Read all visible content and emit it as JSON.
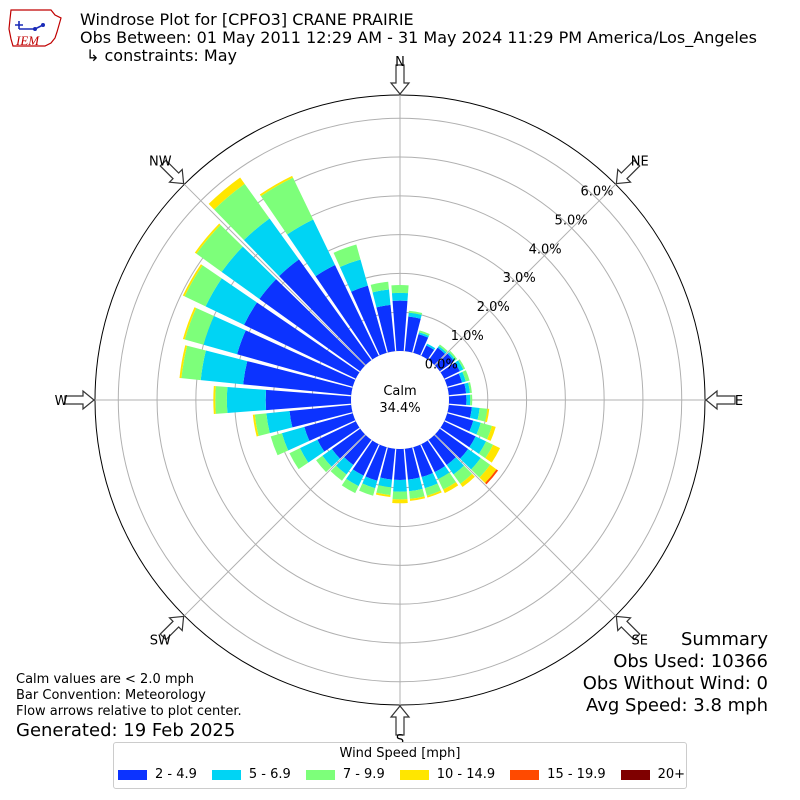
{
  "header": {
    "logo_text": "IEM",
    "title": "Windrose Plot for [CPFO3] CRANE PRAIRIE",
    "period": "Obs Between: 01 May 2011 12:29 AM - 31 May 2024 11:29 PM America/Los_Angeles",
    "constraints": "↳ constraints: May"
  },
  "notes": {
    "line1": "Calm values are < 2.0 mph",
    "line2": "Bar Convention: Meteorology",
    "line3": "Flow arrows relative to plot center.",
    "generated": "Generated: 19 Feb 2025"
  },
  "summary": {
    "title": "Summary",
    "obs_used": "Obs Used: 10366",
    "obs_without_wind": "Obs Without Wind: 0",
    "avg_speed": "Avg Speed: 3.8 mph"
  },
  "legend": {
    "title": "Wind Speed [mph]",
    "items": [
      {
        "label": "2 - 4.9",
        "color": "#0c33ff"
      },
      {
        "label": "5 - 6.9",
        "color": "#00d4f4"
      },
      {
        "label": "7 - 9.9",
        "color": "#7dff7a"
      },
      {
        "label": "10 - 14.9",
        "color": "#ffe600"
      },
      {
        "label": "15 - 19.9",
        "color": "#ff4a00"
      },
      {
        "label": "20+",
        "color": "#7f0000"
      }
    ]
  },
  "chart_data": {
    "type": "windrose",
    "center_label": "Calm",
    "calm_percent": "34.4%",
    "radial_ticks": [
      0,
      1,
      2,
      3,
      4,
      5,
      6
    ],
    "radial_tick_labels": [
      "0.0%",
      "1.0%",
      "2.0%",
      "3.0%",
      "4.0%",
      "5.0%",
      "6.0%"
    ],
    "directions": [
      "N",
      "NE",
      "E",
      "SE",
      "S",
      "SW",
      "W",
      "NW"
    ],
    "bins": [
      "2 - 4.9",
      "5 - 6.9",
      "7 - 9.9",
      "10 - 14.9",
      "15 - 19.9",
      "20+"
    ],
    "sector_directions_deg": [
      0,
      10,
      20,
      30,
      40,
      50,
      60,
      70,
      80,
      90,
      100,
      110,
      120,
      130,
      140,
      150,
      160,
      170,
      180,
      190,
      200,
      210,
      220,
      230,
      240,
      250,
      260,
      270,
      280,
      290,
      300,
      310,
      320,
      330,
      340,
      350
    ],
    "sector_percent_by_bin": [
      [
        1.3,
        0.2,
        0.2,
        0,
        0,
        0
      ],
      [
        0.9,
        0.1,
        0.05,
        0,
        0,
        0
      ],
      [
        0.5,
        0.05,
        0.05,
        0,
        0,
        0
      ],
      [
        0.3,
        0.05,
        0,
        0,
        0,
        0
      ],
      [
        0.4,
        0.05,
        0.05,
        0,
        0,
        0
      ],
      [
        0.45,
        0.05,
        0.05,
        0,
        0,
        0
      ],
      [
        0.45,
        0.1,
        0.05,
        0,
        0,
        0
      ],
      [
        0.4,
        0.1,
        0.1,
        0,
        0,
        0
      ],
      [
        0.45,
        0.1,
        0.05,
        0,
        0,
        0
      ],
      [
        0.45,
        0.1,
        0.05,
        0,
        0,
        0
      ],
      [
        0.6,
        0.2,
        0.2,
        0.05,
        0,
        0
      ],
      [
        0.7,
        0.2,
        0.3,
        0.1,
        0,
        0
      ],
      [
        0.9,
        0.3,
        0.2,
        0.2,
        0,
        0
      ],
      [
        0.9,
        0.4,
        0.3,
        0.2,
        0.05,
        0
      ],
      [
        0.8,
        0.3,
        0.3,
        0.1,
        0,
        0
      ],
      [
        0.8,
        0.2,
        0.3,
        0.1,
        0,
        0
      ],
      [
        0.8,
        0.3,
        0.2,
        0.05,
        0,
        0
      ],
      [
        0.8,
        0.3,
        0.2,
        0.05,
        0,
        0
      ],
      [
        0.8,
        0.3,
        0.2,
        0.1,
        0,
        0
      ],
      [
        0.8,
        0.2,
        0.2,
        0.05,
        0,
        0
      ],
      [
        0.9,
        0.2,
        0.2,
        0,
        0,
        0
      ],
      [
        0.9,
        0.3,
        0.2,
        0,
        0,
        0
      ],
      [
        0.8,
        0.3,
        0.2,
        0,
        0,
        0
      ],
      [
        0.9,
        0.3,
        0.2,
        0,
        0,
        0
      ],
      [
        1.1,
        0.5,
        0.3,
        0,
        0,
        0
      ],
      [
        1.3,
        0.6,
        0.3,
        0,
        0,
        0
      ],
      [
        1.6,
        0.6,
        0.3,
        0.05,
        0,
        0
      ],
      [
        2.2,
        1.0,
        0.3,
        0.05,
        0,
        0
      ],
      [
        2.8,
        1.1,
        0.5,
        0.05,
        0,
        0
      ],
      [
        3.1,
        0.9,
        0.5,
        0.05,
        0,
        0
      ],
      [
        3.2,
        1.1,
        0.6,
        0.05,
        0,
        0
      ],
      [
        3.2,
        1.2,
        0.8,
        0.05,
        0,
        0
      ],
      [
        3.2,
        1.3,
        1.1,
        0.2,
        0,
        0
      ],
      [
        2.6,
        1.3,
        1.2,
        0.05,
        0,
        0
      ],
      [
        1.8,
        0.7,
        0.4,
        0,
        0,
        0
      ],
      [
        1.2,
        0.4,
        0.2,
        0,
        0,
        0
      ]
    ]
  }
}
